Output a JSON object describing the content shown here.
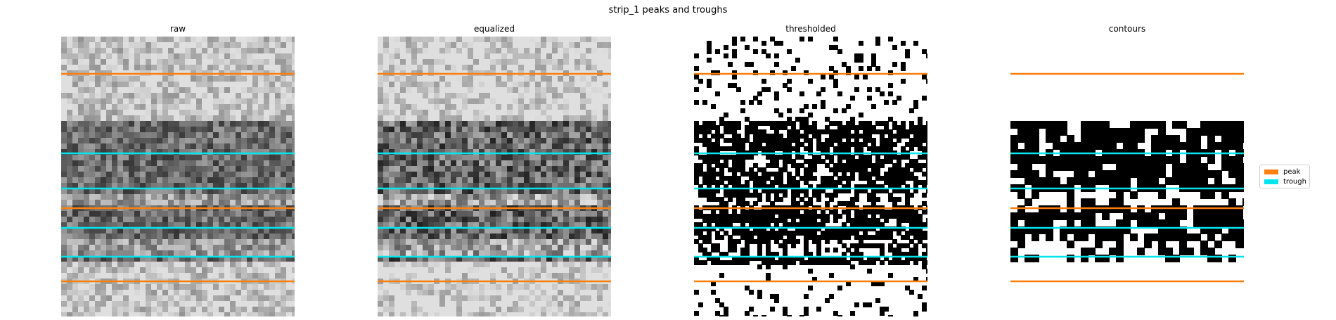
{
  "figure": {
    "title": "strip_1 peaks and troughs"
  },
  "colors": {
    "peak": "#ff7f0e",
    "trough": "#00e5ee"
  },
  "panels": [
    {
      "id": "raw",
      "title": "raw",
      "style": "raw"
    },
    {
      "id": "equalized",
      "title": "equalized",
      "style": "equalized"
    },
    {
      "id": "thresholded",
      "title": "thresholded",
      "style": "thresholded"
    },
    {
      "id": "contours",
      "title": "contours",
      "style": "contours"
    }
  ],
  "chart_data": {
    "type": "image-panels",
    "image_rows": 398,
    "lines": [
      {
        "kind": "peak",
        "row": 53
      },
      {
        "kind": "trough",
        "row": 166
      },
      {
        "kind": "trough",
        "row": 216
      },
      {
        "kind": "peak",
        "row": 244
      },
      {
        "kind": "trough",
        "row": 272
      },
      {
        "kind": "trough",
        "row": 313
      },
      {
        "kind": "peak",
        "row": 348
      }
    ],
    "legend": [
      {
        "kind": "peak",
        "label": "peak"
      },
      {
        "kind": "trough",
        "label": "trough"
      }
    ],
    "legend_position": "center-right"
  }
}
